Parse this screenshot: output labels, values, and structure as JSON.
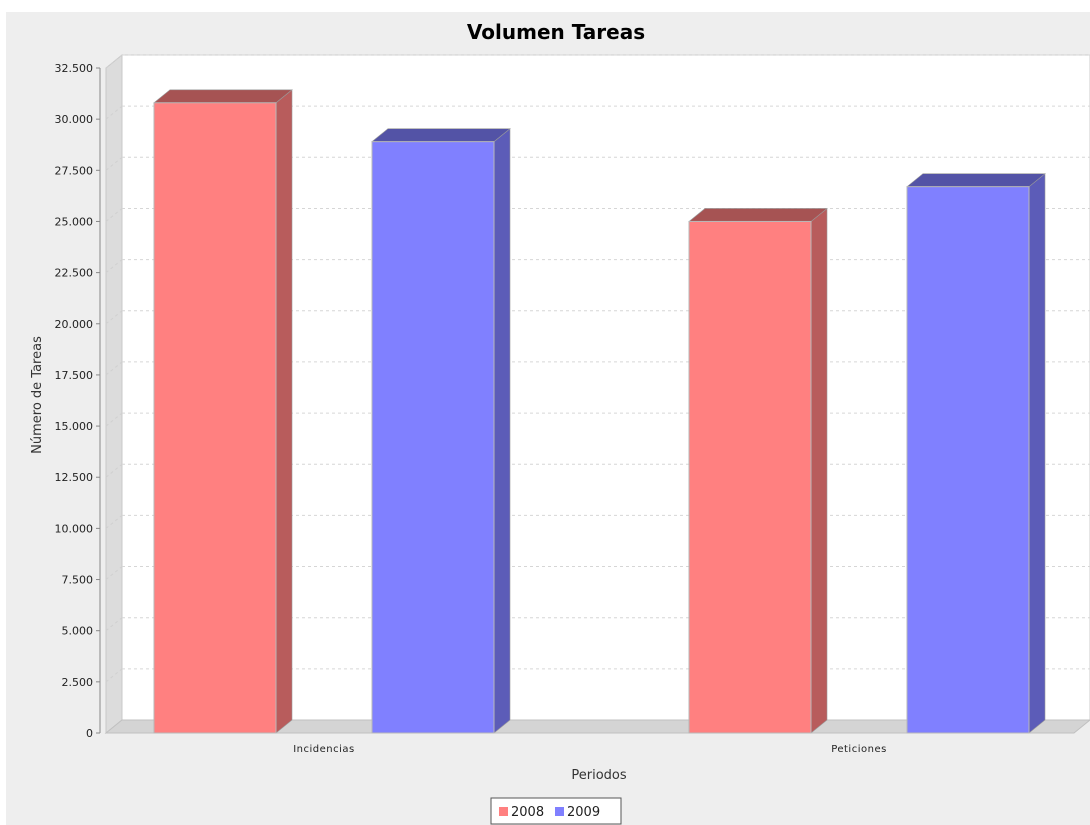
{
  "chart_data": {
    "type": "bar",
    "title": "Volumen Tareas",
    "xlabel": "Periodos",
    "ylabel": "Número de Tareas",
    "categories": [
      "Incidencias",
      "Peticiones"
    ],
    "series": [
      {
        "name": "2008",
        "values": [
          30800,
          25000
        ],
        "color": "#ff8080"
      },
      {
        "name": "2009",
        "values": [
          28900,
          26700
        ],
        "color": "#8080ff"
      }
    ],
    "ylim": [
      0,
      32500
    ],
    "yticks": [
      0,
      2500,
      5000,
      7500,
      10000,
      12500,
      15000,
      17500,
      20000,
      22500,
      25000,
      27500,
      30000,
      32500
    ],
    "ytick_labels": [
      "0",
      "2.500",
      "5.000",
      "7.500",
      "10.000",
      "12.500",
      "15.000",
      "17.500",
      "20.000",
      "22.500",
      "25.000",
      "27.500",
      "30.000",
      "32.500"
    ],
    "grid": true,
    "legend_position": "bottom",
    "style": "3d",
    "background_color": "#eeeeee",
    "plot_background_color": "#ffffff"
  }
}
